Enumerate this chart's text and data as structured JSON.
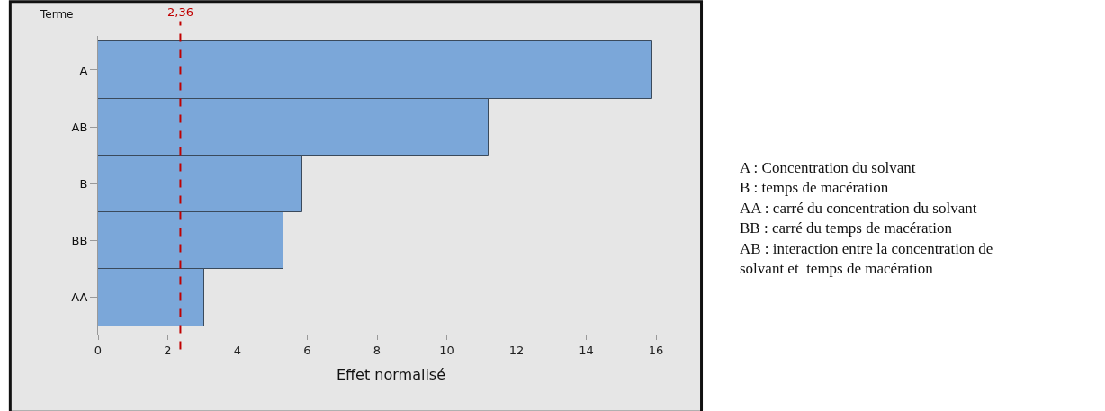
{
  "chart_data": {
    "type": "bar",
    "orientation": "horizontal",
    "ylabel": "Terme",
    "xlabel": "Effet normalisé",
    "categories": [
      "A",
      "AB",
      "B",
      "BB",
      "AA"
    ],
    "values": [
      15.9,
      11.2,
      5.86,
      5.32,
      3.04
    ],
    "color": "#7ba7d9",
    "xlim": [
      0,
      16.8
    ],
    "xticks": [
      0,
      2,
      4,
      6,
      8,
      10,
      12,
      14,
      16
    ],
    "grid": false,
    "ref_lines": [
      {
        "axis": "x",
        "value": 2.36,
        "label": "2,36",
        "color": "#c00000",
        "line_style": "dashed"
      }
    ],
    "annotations": [
      "A : Concentration du solvant",
      "B : temps de macération",
      "AA : carré du concentration du solvant",
      "BB : carré du temps de macération",
      "AB : interaction entre la concentration de solvant et  temps de macération"
    ]
  }
}
